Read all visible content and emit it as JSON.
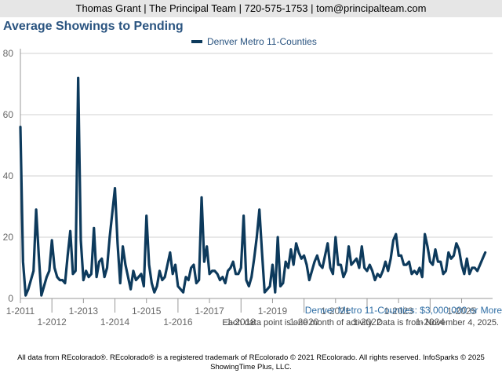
{
  "header": {
    "text": "Thomas Grant | The Principal Team | 720-575-1753 | tom@principalteam.com"
  },
  "chart_data": {
    "type": "line",
    "title": "Average Showings to Pending",
    "subtitle": "Denver Metro 11-Counties: $3,000,000 or More",
    "xlabel": "",
    "ylabel": "",
    "ylim": [
      0,
      80
    ],
    "yticks": [
      0,
      20,
      40,
      60,
      80
    ],
    "xlim": [
      0,
      178
    ],
    "xticks": [
      {
        "label": "1-2011",
        "index": 0,
        "row": 1
      },
      {
        "label": "1-2012",
        "index": 12,
        "row": 2
      },
      {
        "label": "1-2013",
        "index": 24,
        "row": 1
      },
      {
        "label": "1-2014",
        "index": 36,
        "row": 2
      },
      {
        "label": "1-2015",
        "index": 48,
        "row": 1
      },
      {
        "label": "1-2016",
        "index": 60,
        "row": 2
      },
      {
        "label": "1-2017",
        "index": 72,
        "row": 1
      },
      {
        "label": "1-2018",
        "index": 84,
        "row": 2
      },
      {
        "label": "1-2019",
        "index": 96,
        "row": 1
      },
      {
        "label": "1-2020",
        "index": 108,
        "row": 2
      },
      {
        "label": "1-2021",
        "index": 120,
        "row": 1
      },
      {
        "label": "1-2022",
        "index": 132,
        "row": 2
      },
      {
        "label": "1-2023",
        "index": 144,
        "row": 1
      },
      {
        "label": "1-2024",
        "index": 156,
        "row": 2
      },
      {
        "label": "1-2025",
        "index": 168,
        "row": 1
      }
    ],
    "series": [
      {
        "name": "Denver Metro 11-Counties",
        "color": "#0d3a5c",
        "values": [
          56,
          12,
          1,
          3,
          6,
          9,
          29,
          14,
          1,
          4,
          7,
          9,
          19,
          10,
          7,
          6,
          6,
          5,
          14,
          22,
          8,
          9,
          72,
          19,
          6,
          9,
          7,
          8,
          23,
          7,
          12,
          13,
          7,
          10,
          20,
          28,
          36,
          18,
          5,
          17,
          11,
          7,
          3,
          9,
          6,
          7,
          8,
          4,
          27,
          11,
          5,
          2,
          4,
          9,
          6,
          7,
          11,
          15,
          8,
          11,
          4,
          3,
          2,
          7,
          6,
          10,
          11,
          5,
          6,
          33,
          12,
          17,
          8,
          9,
          9,
          8,
          6,
          7,
          5,
          9,
          10,
          12,
          8,
          8,
          10,
          27,
          6,
          4,
          7,
          13,
          20,
          29,
          15,
          2,
          3,
          4,
          11,
          2,
          20,
          4,
          5,
          12,
          10,
          16,
          11,
          18,
          15,
          13,
          14,
          11,
          6,
          9,
          12,
          14,
          11,
          10,
          14,
          18,
          10,
          8,
          20,
          11,
          11,
          7,
          9,
          17,
          11,
          12,
          13,
          10,
          17,
          10,
          9,
          11,
          9,
          6,
          8,
          7,
          9,
          12,
          9,
          13,
          19,
          21,
          14,
          14,
          11,
          11,
          12,
          8,
          9,
          8,
          10,
          7,
          21,
          17,
          12,
          11,
          16,
          12,
          12,
          8,
          9,
          15,
          13,
          14,
          18,
          16,
          11,
          8,
          13,
          8,
          10,
          10,
          9,
          11,
          13,
          15
        ]
      }
    ]
  },
  "footer": {
    "note": "Each data point is one month of activity. Data is from November 4, 2025.",
    "credit_line1": "All data from REcolorado®. REcolorado® is a registered trademark of REcolorado © 2021 REcolorado. All rights reserved. InfoSparks © 2025",
    "credit_line2": "ShowingTime Plus, LLC."
  }
}
